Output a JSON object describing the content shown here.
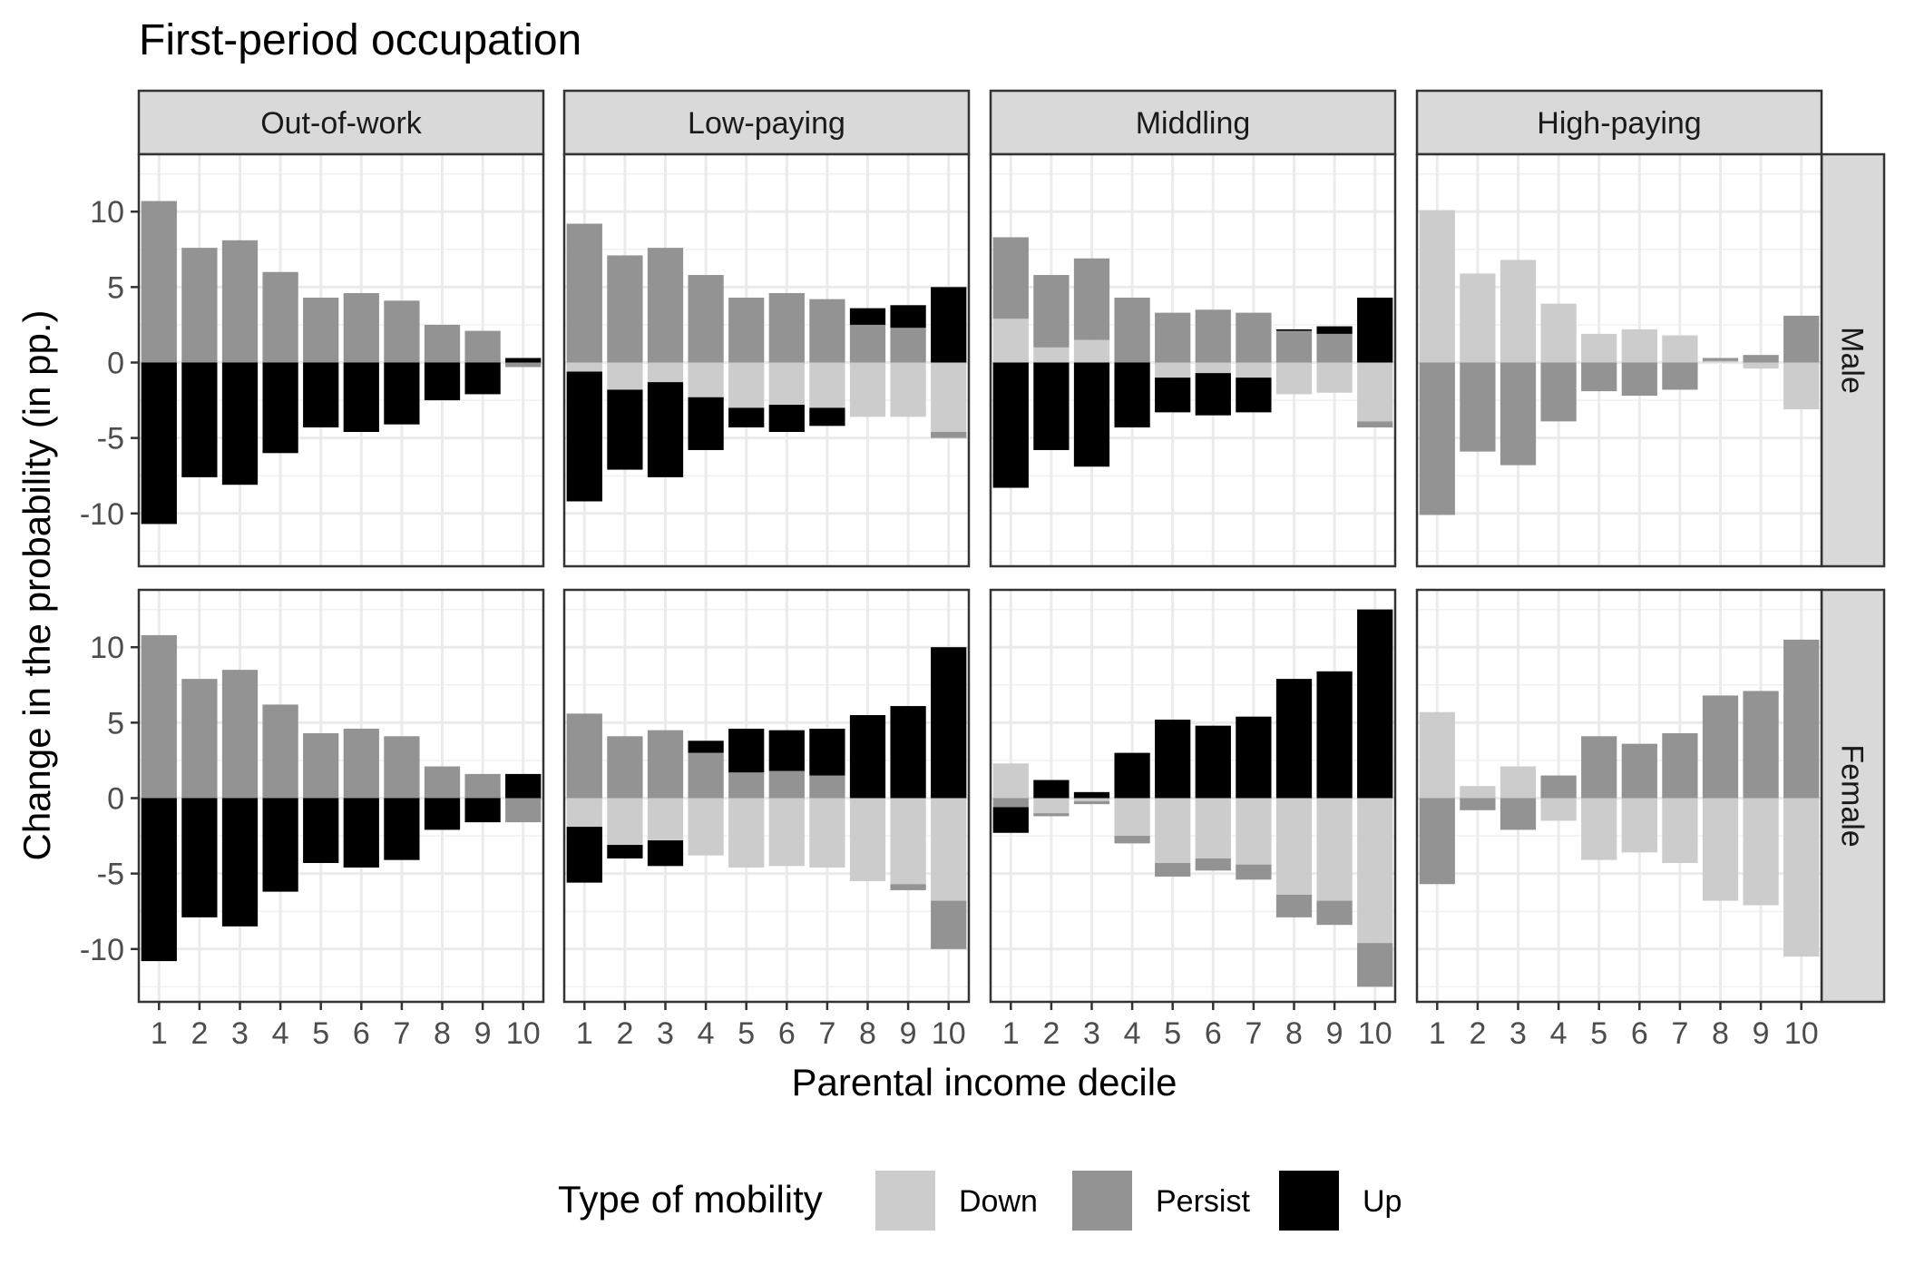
{
  "chart_data": {
    "type": "bar",
    "title": "First-period occupation",
    "xlabel": "Parental income decile",
    "ylabel": "Change in the probability (in pp.)",
    "x": [
      1,
      2,
      3,
      4,
      5,
      6,
      7,
      8,
      9,
      10
    ],
    "ylim": [
      -13.5,
      13.8
    ],
    "yticks": [
      -10,
      -5,
      0,
      5,
      10
    ],
    "grid": true,
    "stacking": "stacked (positive and negative separately)",
    "legend": {
      "title": "Type of mobility",
      "placement": "bottom",
      "entries": [
        {
          "name": "Down",
          "color": "#cccccc"
        },
        {
          "name": "Persist",
          "color": "#939393"
        },
        {
          "name": "Up",
          "color": "#000000"
        }
      ]
    },
    "columns": [
      "Out-of-work",
      "Low-paying",
      "Middling",
      "High-paying"
    ],
    "rows": [
      "Male",
      "Female"
    ],
    "panels": [
      {
        "row": "Male",
        "column": "Out-of-work",
        "series": [
          {
            "name": "Down",
            "values": [
              0,
              0,
              0,
              0,
              0,
              0,
              0,
              0,
              0,
              0
            ]
          },
          {
            "name": "Persist",
            "values": [
              10.7,
              7.6,
              8.1,
              6.0,
              4.3,
              4.6,
              4.1,
              2.5,
              2.1,
              -0.3
            ]
          },
          {
            "name": "Up",
            "values": [
              -10.7,
              -7.6,
              -8.1,
              -6.0,
              -4.3,
              -4.6,
              -4.1,
              -2.5,
              -2.1,
              0.3
            ]
          }
        ]
      },
      {
        "row": "Male",
        "column": "Low-paying",
        "series": [
          {
            "name": "Down",
            "values": [
              -0.6,
              -1.8,
              -1.3,
              -2.3,
              -3.0,
              -2.8,
              -3.0,
              -3.6,
              -3.6,
              -4.6
            ]
          },
          {
            "name": "Persist",
            "values": [
              9.2,
              7.1,
              7.6,
              5.8,
              4.3,
              4.6,
              4.2,
              2.5,
              2.3,
              -0.4
            ]
          },
          {
            "name": "Up",
            "values": [
              -8.6,
              -5.3,
              -6.3,
              -3.5,
              -1.3,
              -1.8,
              -1.2,
              1.1,
              1.5,
              5.0
            ]
          }
        ]
      },
      {
        "row": "Male",
        "column": "Middling",
        "series": [
          {
            "name": "Down",
            "values": [
              2.9,
              1.0,
              1.5,
              0,
              -1.0,
              -0.7,
              -1.0,
              -2.1,
              -2.0,
              -3.9
            ]
          },
          {
            "name": "Persist",
            "values": [
              5.4,
              4.8,
              5.4,
              4.3,
              3.3,
              3.5,
              3.3,
              2.1,
              1.9,
              -0.4
            ]
          },
          {
            "name": "Up",
            "values": [
              -8.3,
              -5.8,
              -6.9,
              -4.3,
              -2.3,
              -2.8,
              -2.3,
              0.1,
              0.5,
              4.3
            ]
          }
        ]
      },
      {
        "row": "Male",
        "column": "High-paying",
        "series": [
          {
            "name": "Down",
            "values": [
              10.1,
              5.9,
              6.8,
              3.9,
              1.9,
              2.2,
              1.8,
              0.1,
              -0.4,
              -3.1
            ]
          },
          {
            "name": "Persist",
            "values": [
              -10.1,
              -5.9,
              -6.8,
              -3.9,
              -1.9,
              -2.2,
              -1.8,
              0.2,
              0.5,
              3.1
            ]
          },
          {
            "name": "Up",
            "values": [
              0,
              0,
              0,
              0,
              0,
              0,
              0,
              0,
              0,
              0
            ]
          }
        ]
      },
      {
        "row": "Female",
        "column": "Out-of-work",
        "series": [
          {
            "name": "Down",
            "values": [
              0,
              0,
              0,
              0,
              0,
              0,
              0,
              0,
              0,
              0
            ]
          },
          {
            "name": "Persist",
            "values": [
              10.8,
              7.9,
              8.5,
              6.2,
              4.3,
              4.6,
              4.1,
              2.1,
              1.6,
              -1.6
            ]
          },
          {
            "name": "Up",
            "values": [
              -10.8,
              -7.9,
              -8.5,
              -6.2,
              -4.3,
              -4.6,
              -4.1,
              -2.1,
              -1.6,
              1.6
            ]
          }
        ]
      },
      {
        "row": "Female",
        "column": "Low-paying",
        "series": [
          {
            "name": "Down",
            "values": [
              -1.9,
              -3.1,
              -2.8,
              -3.8,
              -4.6,
              -4.5,
              -4.6,
              -5.5,
              -5.7,
              -6.8
            ]
          },
          {
            "name": "Persist",
            "values": [
              5.6,
              4.1,
              4.5,
              3.0,
              1.7,
              1.8,
              1.5,
              0,
              -0.4,
              -3.2
            ]
          },
          {
            "name": "Up",
            "values": [
              -3.7,
              -0.9,
              -1.7,
              0.8,
              2.9,
              2.7,
              3.1,
              5.5,
              6.1,
              10.0
            ]
          }
        ]
      },
      {
        "row": "Female",
        "column": "Middling",
        "series": [
          {
            "name": "Down",
            "values": [
              2.3,
              -1.0,
              -0.2,
              -2.5,
              -4.3,
              -4.0,
              -4.4,
              -6.4,
              -6.8,
              -9.6
            ]
          },
          {
            "name": "Persist",
            "values": [
              -0.6,
              -0.2,
              -0.2,
              -0.5,
              -0.9,
              -0.8,
              -1.0,
              -1.5,
              -1.6,
              -2.9
            ]
          },
          {
            "name": "Up",
            "values": [
              -1.7,
              1.2,
              0.4,
              3.0,
              5.2,
              4.8,
              5.4,
              7.9,
              8.4,
              12.5
            ]
          }
        ]
      },
      {
        "row": "Female",
        "column": "High-paying",
        "series": [
          {
            "name": "Down",
            "values": [
              5.7,
              0.8,
              2.1,
              -1.5,
              -4.1,
              -3.6,
              -4.3,
              -6.8,
              -7.1,
              -10.5
            ]
          },
          {
            "name": "Persist",
            "values": [
              -5.7,
              -0.8,
              -2.1,
              1.5,
              4.1,
              3.6,
              4.3,
              6.8,
              7.1,
              10.5
            ]
          },
          {
            "name": "Up",
            "values": [
              0,
              0,
              0,
              0,
              0,
              0,
              0,
              0,
              0,
              0
            ]
          }
        ]
      }
    ]
  }
}
